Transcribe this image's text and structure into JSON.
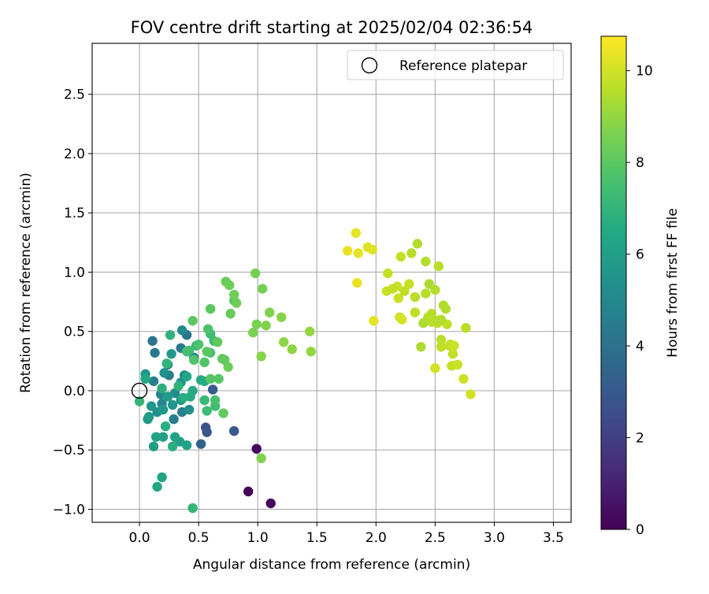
{
  "chart_data": {
    "type": "scatter",
    "title": "FOV centre drift starting at 2025/02/04 02:36:54",
    "xlabel": "Angular distance from reference (arcmin)",
    "ylabel": "Rotation from reference (arcmin)",
    "colorbar_label": "Hours from first FF file",
    "xlim": [
      -0.4,
      3.65
    ],
    "ylim": [
      -1.11,
      2.93
    ],
    "x_ticks": [
      0.0,
      0.5,
      1.0,
      1.5,
      2.0,
      2.5,
      3.0,
      3.5
    ],
    "x_tick_labels": [
      "0.0",
      "0.5",
      "1.0",
      "1.5",
      "2.0",
      "2.5",
      "3.0",
      "3.5"
    ],
    "y_ticks": [
      -1.0,
      -0.5,
      0.0,
      0.5,
      1.0,
      1.5,
      2.0,
      2.5
    ],
    "y_tick_labels": [
      "−1.0",
      "−0.5",
      "0.0",
      "0.5",
      "1.0",
      "1.5",
      "2.0",
      "2.5"
    ],
    "colorbar_range": [
      0,
      10.75
    ],
    "colorbar_ticks": [
      0,
      2,
      4,
      6,
      8,
      10
    ],
    "colorbar_tick_labels": [
      "0",
      "2",
      "4",
      "6",
      "8",
      "10"
    ],
    "colormap": "viridis",
    "grid": true,
    "legend": {
      "position": "top-right",
      "entries": [
        "Reference platepar"
      ]
    },
    "reference": {
      "x": 0.0,
      "y": 0.0,
      "label": "Reference platepar"
    },
    "points": [
      [
        0.92,
        -0.85,
        0.1
      ],
      [
        1.11,
        -0.95,
        0.2
      ],
      [
        0.99,
        -0.49,
        0.3
      ],
      [
        0.56,
        -0.31,
        2.7
      ],
      [
        0.57,
        -0.35,
        2.9
      ],
      [
        0.8,
        -0.34,
        3.0
      ],
      [
        0.62,
        0.01,
        3.1
      ],
      [
        0.52,
        -0.45,
        3.4
      ],
      [
        0.11,
        0.42,
        4.1
      ],
      [
        0.13,
        0.32,
        4.3
      ],
      [
        0.4,
        0.47,
        4.2
      ],
      [
        0.35,
        0.36,
        4.4
      ],
      [
        0.25,
        0.13,
        4.5
      ],
      [
        0.36,
        -0.18,
        4.6
      ],
      [
        0.29,
        -0.24,
        4.6
      ],
      [
        0.12,
        0.08,
        4.7
      ],
      [
        0.18,
        -0.03,
        4.8
      ],
      [
        0.19,
        -0.11,
        4.9
      ],
      [
        0.38,
        0.13,
        5.0
      ],
      [
        0.46,
        0.28,
        5.0
      ],
      [
        0.36,
        0.51,
        5.1
      ],
      [
        0.24,
        0.22,
        5.2
      ],
      [
        0.3,
        -0.02,
        5.2
      ],
      [
        0.42,
        -0.16,
        5.3
      ],
      [
        0.15,
        -0.18,
        5.3
      ],
      [
        0.21,
        0.15,
        5.4
      ],
      [
        0.35,
        0.07,
        5.5
      ],
      [
        0.28,
        -0.12,
        5.5
      ],
      [
        0.1,
        -0.13,
        5.6
      ],
      [
        0.05,
        0.14,
        5.6
      ],
      [
        0.27,
        0.31,
        5.7
      ],
      [
        0.35,
        -0.08,
        5.7
      ],
      [
        0.2,
        -0.16,
        5.8
      ],
      [
        0.08,
        -0.22,
        5.8
      ],
      [
        0.07,
        -0.24,
        5.9
      ],
      [
        0.24,
        -0.05,
        5.9
      ],
      [
        0.34,
        -0.43,
        6.0
      ],
      [
        0.12,
        -0.47,
        6.0
      ],
      [
        0.4,
        -0.46,
        6.1
      ],
      [
        0.2,
        -0.39,
        6.1
      ],
      [
        0.14,
        -0.39,
        6.2
      ],
      [
        0.3,
        -0.39,
        6.2
      ],
      [
        0.19,
        -0.73,
        6.3
      ],
      [
        0.15,
        -0.81,
        6.3
      ],
      [
        0.05,
        0.1,
        6.4
      ],
      [
        0.4,
        0.12,
        6.4
      ],
      [
        0.45,
        0.0,
        6.5
      ],
      [
        0.52,
        0.09,
        6.5
      ],
      [
        0.55,
        0.08,
        6.6
      ],
      [
        0.43,
        -0.05,
        6.6
      ],
      [
        0.37,
        -0.06,
        6.7
      ],
      [
        0.22,
        -0.3,
        6.7
      ],
      [
        0.28,
        -0.47,
        6.8
      ],
      [
        0.19,
        0.02,
        6.8
      ],
      [
        0.33,
        0.04,
        6.9
      ],
      [
        0.26,
        0.47,
        6.9
      ],
      [
        0.23,
        0.23,
        7.0
      ],
      [
        0.45,
        -0.99,
        7.0
      ],
      [
        0.0,
        -0.09,
        7.1
      ],
      [
        0.48,
        0.38,
        7.1
      ],
      [
        0.55,
        -0.08,
        7.2
      ],
      [
        0.6,
        0.48,
        7.3
      ],
      [
        0.57,
        -0.17,
        7.3
      ],
      [
        0.63,
        0.42,
        7.4
      ],
      [
        0.64,
        -0.13,
        7.4
      ],
      [
        0.4,
        0.33,
        7.5
      ],
      [
        0.42,
        0.34,
        7.5
      ],
      [
        0.6,
        0.32,
        7.6
      ],
      [
        0.64,
        -0.08,
        7.6
      ],
      [
        0.5,
        0.39,
        7.7
      ],
      [
        0.58,
        0.52,
        7.7
      ],
      [
        0.46,
        0.26,
        7.8
      ],
      [
        0.55,
        0.24,
        7.8
      ],
      [
        0.6,
        0.1,
        7.9
      ],
      [
        0.67,
        0.1,
        7.9
      ],
      [
        0.45,
        0.59,
        8.0
      ],
      [
        0.57,
        0.33,
        8.0
      ],
      [
        0.71,
        -0.19,
        8.1
      ],
      [
        0.66,
        0.41,
        8.1
      ],
      [
        0.8,
        0.76,
        7.9
      ],
      [
        0.6,
        0.69,
        8.0
      ],
      [
        0.77,
        0.65,
        8.2
      ],
      [
        0.73,
        0.92,
        8.3
      ],
      [
        0.76,
        0.89,
        8.3
      ],
      [
        0.8,
        0.81,
        8.4
      ],
      [
        0.82,
        0.74,
        8.4
      ],
      [
        0.98,
        0.99,
        8.5
      ],
      [
        1.04,
        0.86,
        8.5
      ],
      [
        0.96,
        0.49,
        8.6
      ],
      [
        0.99,
        0.56,
        8.6
      ],
      [
        1.07,
        0.55,
        8.7
      ],
      [
        1.1,
        0.66,
        8.7
      ],
      [
        1.2,
        0.62,
        8.8
      ],
      [
        1.03,
        0.29,
        8.8
      ],
      [
        1.22,
        0.41,
        8.9
      ],
      [
        1.29,
        0.35,
        8.9
      ],
      [
        1.44,
        0.5,
        9.0
      ],
      [
        1.45,
        0.33,
        9.0
      ],
      [
        1.03,
        -0.57,
        8.7
      ],
      [
        0.7,
        0.27,
        8.2
      ],
      [
        0.75,
        0.2,
        8.3
      ],
      [
        0.72,
        0.26,
        8.1
      ],
      [
        2.57,
        0.72,
        9.5
      ],
      [
        2.52,
        0.57,
        9.6
      ],
      [
        2.55,
        0.43,
        9.6
      ],
      [
        2.6,
        0.56,
        9.7
      ],
      [
        2.63,
        0.39,
        9.7
      ],
      [
        2.64,
        0.21,
        9.8
      ],
      [
        2.65,
        0.31,
        9.8
      ],
      [
        2.69,
        0.22,
        9.9
      ],
      [
        2.74,
        0.1,
        9.9
      ],
      [
        2.76,
        0.53,
        9.6
      ],
      [
        2.8,
        -0.03,
        10.0
      ],
      [
        2.55,
        0.6,
        9.5
      ],
      [
        2.47,
        0.58,
        9.6
      ],
      [
        2.44,
        0.62,
        9.5
      ],
      [
        2.4,
        0.57,
        9.4
      ],
      [
        2.38,
        0.37,
        9.4
      ],
      [
        2.5,
        0.19,
        10.0
      ],
      [
        2.45,
        0.9,
        9.4
      ],
      [
        2.5,
        0.85,
        9.5
      ],
      [
        2.53,
        1.05,
        9.6
      ],
      [
        2.42,
        1.09,
        9.5
      ],
      [
        2.35,
        1.24,
        9.5
      ],
      [
        2.3,
        1.16,
        9.6
      ],
      [
        2.21,
        1.13,
        9.8
      ],
      [
        2.28,
        0.9,
        9.8
      ],
      [
        2.33,
        0.79,
        9.6
      ],
      [
        2.24,
        0.84,
        9.7
      ],
      [
        2.19,
        0.78,
        9.9
      ],
      [
        2.18,
        0.88,
        9.9
      ],
      [
        2.1,
        0.99,
        9.8
      ],
      [
        2.09,
        0.84,
        9.9
      ],
      [
        2.14,
        0.86,
        9.8
      ],
      [
        2.2,
        0.62,
        10.0
      ],
      [
        2.22,
        0.6,
        10.1
      ],
      [
        2.33,
        0.66,
        9.7
      ],
      [
        2.42,
        0.82,
        9.6
      ],
      [
        2.47,
        0.65,
        9.6
      ],
      [
        2.55,
        0.37,
        9.7
      ],
      [
        2.62,
        0.38,
        9.8
      ],
      [
        2.66,
        0.38,
        9.9
      ],
      [
        2.59,
        0.69,
        9.5
      ],
      [
        2.52,
        0.59,
        9.5
      ],
      [
        2.46,
        0.6,
        9.6
      ],
      [
        1.93,
        1.21,
        10.2
      ],
      [
        1.97,
        1.19,
        10.2
      ],
      [
        1.83,
        1.33,
        10.3
      ],
      [
        1.76,
        1.18,
        10.4
      ],
      [
        1.85,
        1.16,
        10.3
      ],
      [
        1.84,
        0.91,
        10.4
      ],
      [
        1.98,
        0.59,
        10.3
      ]
    ]
  }
}
